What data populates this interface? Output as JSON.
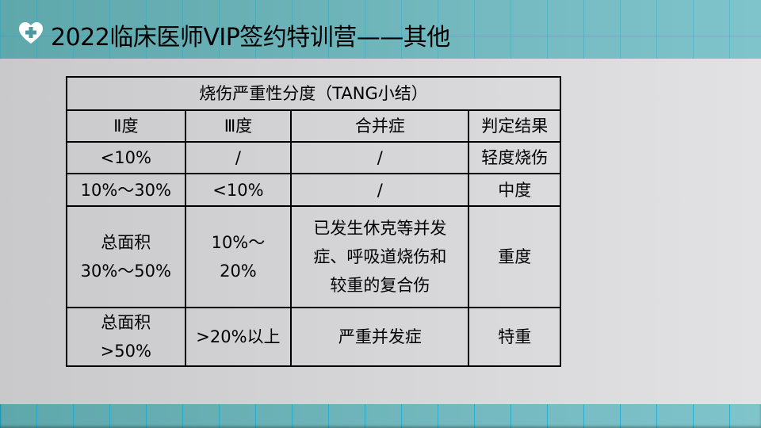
{
  "header": {
    "title": "2022临床医师VIP签约特训营——其他",
    "icon": "heart-plus-icon"
  },
  "table": {
    "caption": "烧伤严重性分度（TANG小结）",
    "columns": [
      "Ⅱ度",
      "Ⅲ度",
      "合并症",
      "判定结果"
    ],
    "rows": [
      [
        "<10%",
        "/",
        "/",
        "轻度烧伤"
      ],
      [
        "10%～30%",
        "<10%",
        "/",
        "中度"
      ],
      [
        "总面积\n30%～50%",
        "10%～\n20%",
        "已发生休克等并发\n症、呼吸道烧伤和\n较重的复合伤",
        "重度"
      ],
      [
        "总面积\n>50%",
        ">20%以上",
        "严重并发症",
        "特重"
      ]
    ]
  }
}
